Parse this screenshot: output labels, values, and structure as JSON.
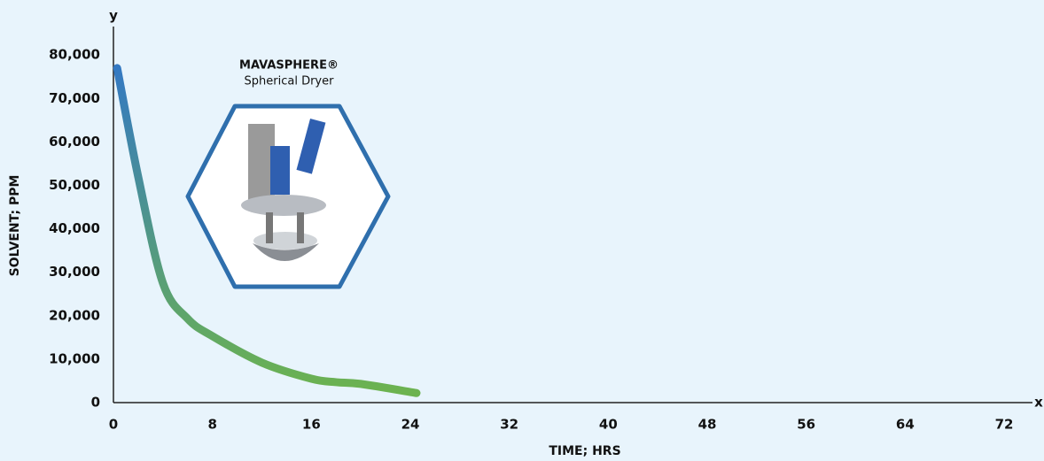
{
  "chart_data": {
    "type": "line",
    "x_label": "TIME; HRS",
    "y_label": "SOLVENT; PPM",
    "x_axis_name": "x",
    "y_axis_name": "y",
    "annotation": {
      "title": "MAVASPHERE®",
      "subtitle": "Spherical Dryer"
    },
    "x": [
      0.3,
      2,
      4,
      6,
      8,
      12,
      16,
      18,
      20,
      24.5
    ],
    "series": [
      {
        "values": [
          77000,
          52000,
          27500,
          19300,
          15300,
          9200,
          5500,
          4700,
          4300,
          2200
        ],
        "colors": [
          "#3479c2",
          "#6cb34f"
        ]
      }
    ],
    "xlim": [
      0,
      74.5
    ],
    "ylim": [
      0,
      86000
    ],
    "xticks": [
      0,
      8,
      16,
      24,
      32,
      40,
      48,
      56,
      64,
      72
    ],
    "yticks": [
      0,
      {
        "value": 10000,
        "label": "10,000"
      },
      {
        "value": 20000,
        "label": "20,000"
      },
      {
        "value": 30000,
        "label": "30,000"
      },
      {
        "value": 40000,
        "label": "40,000"
      },
      {
        "value": 50000,
        "label": "50,000"
      },
      {
        "value": 60000,
        "label": "60,000"
      },
      {
        "value": 70000,
        "label": "70,000"
      },
      {
        "value": 80000,
        "label": "80,000"
      }
    ]
  }
}
